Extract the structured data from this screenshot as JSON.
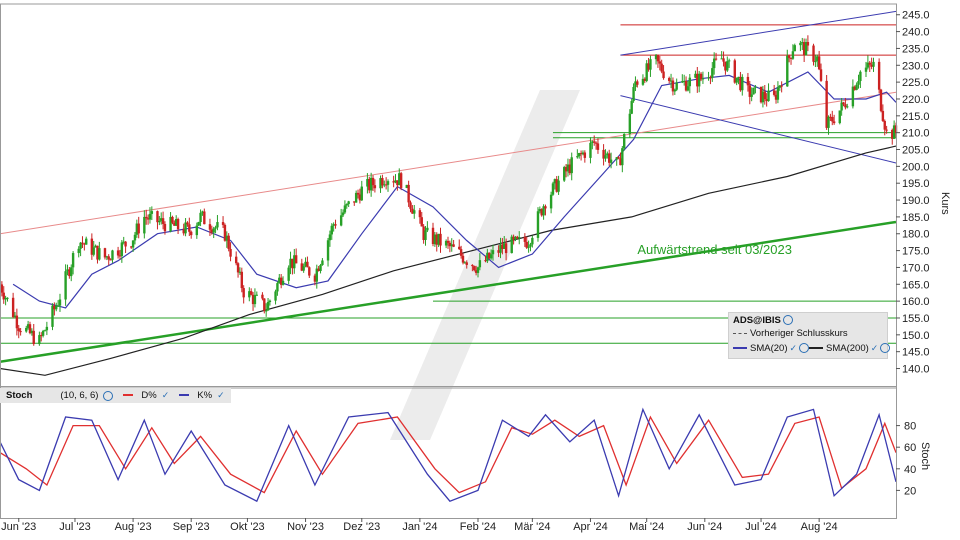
{
  "chart_data": [
    {
      "type": "candlestick",
      "instrument": "ADS@IBIS",
      "y_axis_label": "Kurs",
      "ylim": [
        136,
        247
      ],
      "y_ticks": [
        140,
        145,
        150,
        155,
        160,
        165,
        170,
        175,
        180,
        185,
        190,
        195,
        200,
        205,
        210,
        215,
        220,
        225,
        230,
        235,
        240,
        245
      ],
      "x_tick_labels": [
        "Jun '23",
        "Jul '23",
        "Aug '23",
        "Sep '23",
        "Okt '23",
        "Nov '23",
        "Dez '23",
        "Jan '24",
        "Feb '24",
        "Mär '24",
        "Apr '24",
        "Mai '24",
        "Jun '24",
        "Jul '24",
        "Aug '24"
      ],
      "x_range": [
        "2023-05-22",
        "2024-09-11"
      ],
      "close_path": [
        [
          "2023-05-22",
          165
        ],
        [
          "2023-06-01",
          153
        ],
        [
          "2023-06-12",
          148
        ],
        [
          "2023-06-22",
          160
        ],
        [
          "2023-07-03",
          178
        ],
        [
          "2023-07-17",
          173
        ],
        [
          "2023-07-31",
          178
        ],
        [
          "2023-08-07",
          185
        ],
        [
          "2023-08-18",
          183
        ],
        [
          "2023-08-31",
          181
        ],
        [
          "2023-09-06",
          185
        ],
        [
          "2023-09-19",
          180
        ],
        [
          "2023-09-29",
          163
        ],
        [
          "2023-10-11",
          158
        ],
        [
          "2023-10-23",
          172
        ],
        [
          "2023-11-06",
          168
        ],
        [
          "2023-11-16",
          183
        ],
        [
          "2023-12-01",
          193
        ],
        [
          "2023-12-14",
          197
        ],
        [
          "2023-12-22",
          196
        ],
        [
          "2024-01-03",
          180
        ],
        [
          "2024-01-17",
          176
        ],
        [
          "2024-02-01",
          170
        ],
        [
          "2024-02-14",
          176
        ],
        [
          "2024-02-28",
          178
        ],
        [
          "2024-03-08",
          190
        ],
        [
          "2024-03-21",
          200
        ],
        [
          "2024-04-03",
          207
        ],
        [
          "2024-04-16",
          200
        ],
        [
          "2024-04-25",
          225
        ],
        [
          "2024-05-06",
          231
        ],
        [
          "2024-05-16",
          224
        ],
        [
          "2024-05-30",
          226
        ],
        [
          "2024-06-10",
          232
        ],
        [
          "2024-06-24",
          222
        ],
        [
          "2024-07-08",
          220
        ],
        [
          "2024-07-19",
          237
        ],
        [
          "2024-07-31",
          232
        ],
        [
          "2024-08-05",
          212
        ],
        [
          "2024-08-14",
          218
        ],
        [
          "2024-08-23",
          228
        ],
        [
          "2024-08-30",
          230
        ],
        [
          "2024-09-06",
          210
        ],
        [
          "2024-09-11",
          210
        ]
      ],
      "sma20_path": [
        [
          "2023-05-29",
          165
        ],
        [
          "2023-06-12",
          160
        ],
        [
          "2023-06-26",
          158
        ],
        [
          "2023-07-10",
          168
        ],
        [
          "2023-07-24",
          172
        ],
        [
          "2023-08-14",
          180
        ],
        [
          "2023-09-04",
          182
        ],
        [
          "2023-09-22",
          178
        ],
        [
          "2023-10-06",
          168
        ],
        [
          "2023-10-27",
          164
        ],
        [
          "2023-11-13",
          166
        ],
        [
          "2023-12-01",
          180
        ],
        [
          "2023-12-20",
          194
        ],
        [
          "2024-01-08",
          188
        ],
        [
          "2024-01-26",
          178
        ],
        [
          "2024-02-12",
          170
        ],
        [
          "2024-03-01",
          174
        ],
        [
          "2024-03-18",
          185
        ],
        [
          "2024-04-08",
          198
        ],
        [
          "2024-04-24",
          208
        ],
        [
          "2024-05-09",
          224
        ],
        [
          "2024-05-29",
          226
        ],
        [
          "2024-06-14",
          227
        ],
        [
          "2024-07-05",
          222
        ],
        [
          "2024-07-26",
          228
        ],
        [
          "2024-08-09",
          220
        ],
        [
          "2024-08-26",
          220
        ],
        [
          "2024-09-06",
          222
        ],
        [
          "2024-09-11",
          219
        ]
      ],
      "sma200_path": [
        [
          "2023-05-22",
          140
        ],
        [
          "2023-06-15",
          138
        ],
        [
          "2023-07-20",
          143
        ],
        [
          "2023-08-28",
          149
        ],
        [
          "2023-10-02",
          156
        ],
        [
          "2023-11-10",
          162
        ],
        [
          "2023-12-18",
          169
        ],
        [
          "2024-01-29",
          175
        ],
        [
          "2024-03-11",
          181
        ],
        [
          "2024-04-23",
          185
        ],
        [
          "2024-06-03",
          192
        ],
        [
          "2024-07-15",
          197
        ],
        [
          "2024-08-26",
          204
        ],
        [
          "2024-09-11",
          206
        ]
      ],
      "stochastic": {
        "label": "Stoch",
        "params": "(10, 6, 6)",
        "series_names": [
          "D%",
          "K%"
        ],
        "y_axis_label": "Stoch",
        "ylim": [
          0,
          100
        ],
        "y_ticks": [
          20,
          40,
          60,
          80
        ],
        "k_path": [
          [
            "2023-05-22",
            65
          ],
          [
            "2023-06-01",
            30
          ],
          [
            "2023-06-12",
            20
          ],
          [
            "2023-06-26",
            88
          ],
          [
            "2023-07-10",
            85
          ],
          [
            "2023-07-24",
            30
          ],
          [
            "2023-08-07",
            85
          ],
          [
            "2023-08-18",
            35
          ],
          [
            "2023-09-01",
            75
          ],
          [
            "2023-09-19",
            25
          ],
          [
            "2023-10-06",
            10
          ],
          [
            "2023-10-23",
            80
          ],
          [
            "2023-11-06",
            25
          ],
          [
            "2023-11-24",
            88
          ],
          [
            "2023-12-15",
            92
          ],
          [
            "2024-01-05",
            35
          ],
          [
            "2024-01-17",
            10
          ],
          [
            "2024-02-01",
            20
          ],
          [
            "2024-02-14",
            85
          ],
          [
            "2024-02-28",
            70
          ],
          [
            "2024-03-08",
            90
          ],
          [
            "2024-03-21",
            65
          ],
          [
            "2024-04-03",
            85
          ],
          [
            "2024-04-16",
            15
          ],
          [
            "2024-04-29",
            95
          ],
          [
            "2024-05-13",
            40
          ],
          [
            "2024-05-29",
            90
          ],
          [
            "2024-06-17",
            25
          ],
          [
            "2024-07-01",
            30
          ],
          [
            "2024-07-15",
            88
          ],
          [
            "2024-07-29",
            95
          ],
          [
            "2024-08-09",
            15
          ],
          [
            "2024-08-21",
            35
          ],
          [
            "2024-09-02",
            90
          ],
          [
            "2024-09-11",
            28
          ]
        ],
        "d_path": [
          [
            "2023-05-22",
            55
          ],
          [
            "2023-06-05",
            40
          ],
          [
            "2023-06-16",
            25
          ],
          [
            "2023-06-30",
            80
          ],
          [
            "2023-07-14",
            80
          ],
          [
            "2023-07-28",
            40
          ],
          [
            "2023-08-11",
            78
          ],
          [
            "2023-08-23",
            45
          ],
          [
            "2023-09-06",
            70
          ],
          [
            "2023-09-22",
            35
          ],
          [
            "2023-10-10",
            18
          ],
          [
            "2023-10-27",
            75
          ],
          [
            "2023-11-10",
            35
          ],
          [
            "2023-11-29",
            82
          ],
          [
            "2023-12-20",
            88
          ],
          [
            "2024-01-09",
            40
          ],
          [
            "2024-01-22",
            18
          ],
          [
            "2024-02-05",
            28
          ],
          [
            "2024-02-19",
            78
          ],
          [
            "2024-03-01",
            72
          ],
          [
            "2024-03-13",
            85
          ],
          [
            "2024-03-26",
            70
          ],
          [
            "2024-04-08",
            80
          ],
          [
            "2024-04-20",
            25
          ],
          [
            "2024-05-03",
            88
          ],
          [
            "2024-05-17",
            45
          ],
          [
            "2024-06-03",
            85
          ],
          [
            "2024-06-21",
            32
          ],
          [
            "2024-07-05",
            35
          ],
          [
            "2024-07-19",
            82
          ],
          [
            "2024-08-01",
            88
          ],
          [
            "2024-08-13",
            22
          ],
          [
            "2024-08-26",
            40
          ],
          [
            "2024-09-05",
            82
          ],
          [
            "2024-09-11",
            55
          ]
        ]
      },
      "horizontal_levels": [
        {
          "value": 242,
          "color": "#cc2222",
          "from": "2024-04-17"
        },
        {
          "value": 233,
          "color": "#cc2222",
          "from": "2024-04-17"
        },
        {
          "value": 210,
          "color": "#27a027",
          "from": "2024-03-12"
        },
        {
          "value": 208.5,
          "color": "#27a027",
          "from": "2024-03-12"
        },
        {
          "value": 160,
          "color": "#27a027",
          "from": "2024-01-08"
        },
        {
          "value": 155,
          "color": "#27a027",
          "from": "2023-05-22"
        },
        {
          "value": 147.5,
          "color": "#27a027",
          "from": "2023-05-22"
        }
      ],
      "trend_lines": [
        {
          "color": "#27a027",
          "points": [
            [
              "2023-05-22",
              142
            ],
            [
              "2024-09-11",
              183.5
            ]
          ]
        },
        {
          "color": "#e88a8a",
          "points": [
            [
              "2023-05-22",
              180
            ],
            [
              "2024-09-11",
              222
            ]
          ]
        },
        {
          "color": "#3b3bb0",
          "points": [
            [
              "2024-04-17",
              233
            ],
            [
              "2024-09-11",
              246
            ]
          ]
        },
        {
          "color": "#3b3bb0",
          "points": [
            [
              "2024-04-17",
              221
            ],
            [
              "2024-09-11",
              201
            ]
          ]
        }
      ],
      "annotation": {
        "text": "Aufwärtstrend seit 03/2023",
        "at": [
          "2024-04-26",
          174
        ]
      },
      "legend": {
        "title": "ADS@IBIS",
        "items": [
          "Vorheriger Schlusskurs",
          "SMA(20)",
          "SMA(200)"
        ],
        "colors": {
          "prev_close": "#555555",
          "sma20": "#3b3bb0",
          "sma200": "#222222"
        }
      },
      "colors": {
        "up": "#27a027",
        "down": "#cc2222",
        "d_line": "#e03030",
        "k_line": "#3b3bb0"
      }
    }
  ]
}
